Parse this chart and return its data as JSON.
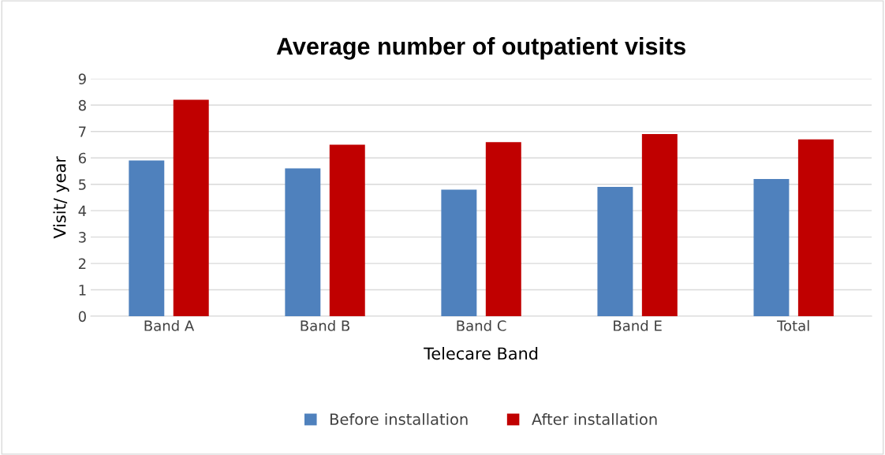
{
  "chart_data": {
    "type": "bar",
    "title": "Average number of outpatient visits",
    "xlabel": "Telecare Band",
    "ylabel": "Visit/ year",
    "categories": [
      "Band A",
      "Band B",
      "Band C",
      "Band E",
      "Total"
    ],
    "series": [
      {
        "name": "Before installation",
        "color": "#4f81bd",
        "values": [
          5.9,
          5.6,
          4.8,
          4.9,
          5.2
        ]
      },
      {
        "name": "After installation",
        "color": "#c00000",
        "values": [
          8.2,
          6.5,
          6.6,
          6.9,
          6.7
        ]
      }
    ],
    "ylim": [
      0,
      9
    ],
    "yticks": [
      0,
      1,
      2,
      3,
      4,
      5,
      6,
      7,
      8,
      9
    ],
    "grid": "y",
    "legend": "bottom"
  }
}
